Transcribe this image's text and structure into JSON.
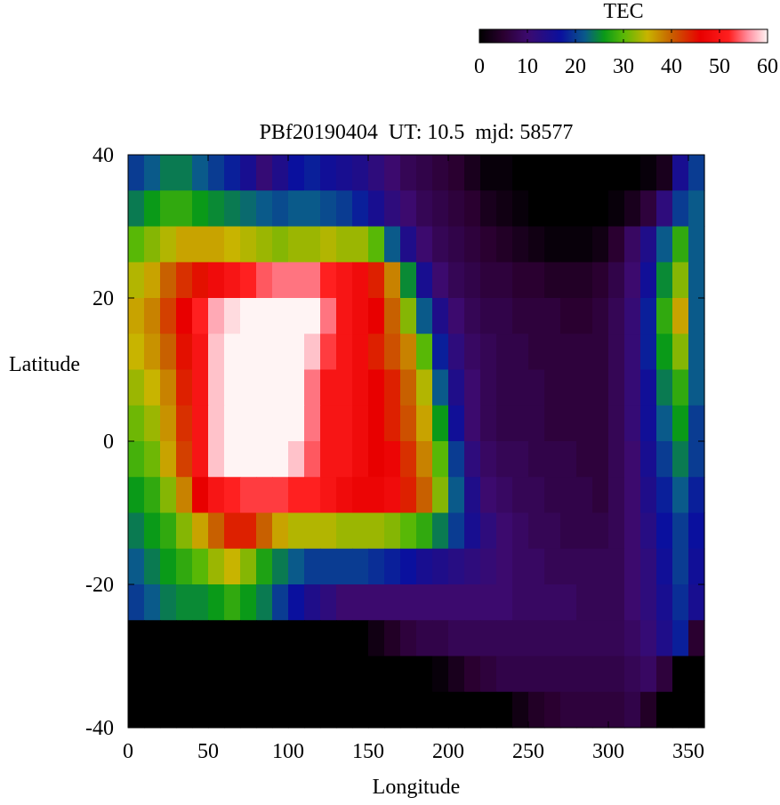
{
  "chart_data": {
    "type": "heatmap",
    "title": "PBf20190404  UT: 10.5  mjd: 58577",
    "xlabel": "Longitude",
    "ylabel": "Latitude",
    "xlim": [
      0,
      360
    ],
    "ylim": [
      -40,
      40
    ],
    "x_ticks": [
      0,
      50,
      100,
      150,
      200,
      250,
      300,
      350
    ],
    "y_ticks": [
      -40,
      -20,
      0,
      20,
      40
    ],
    "grid": false,
    "colorbar": {
      "label": "TEC",
      "range": [
        0,
        60
      ],
      "ticks": [
        0,
        10,
        20,
        30,
        40,
        50,
        60
      ],
      "placement": "top-right",
      "colormap_stops": [
        {
          "value": 0,
          "color": "#000000"
        },
        {
          "value": 5,
          "color": "#2a0030"
        },
        {
          "value": 10,
          "color": "#3c0a6e"
        },
        {
          "value": 17,
          "color": "#0a109e"
        },
        {
          "value": 22,
          "color": "#0a5a8a"
        },
        {
          "value": 26,
          "color": "#0a9a18"
        },
        {
          "value": 30,
          "color": "#58b806"
        },
        {
          "value": 35,
          "color": "#c8b400"
        },
        {
          "value": 40,
          "color": "#c86000"
        },
        {
          "value": 46,
          "color": "#e80000"
        },
        {
          "value": 52,
          "color": "#ff2020"
        },
        {
          "value": 56,
          "color": "#ff90a0"
        },
        {
          "value": 60,
          "color": "#fff4f4"
        }
      ]
    },
    "grid_longitudes": [
      0,
      10,
      20,
      30,
      40,
      50,
      60,
      70,
      80,
      90,
      100,
      110,
      120,
      130,
      140,
      150,
      160,
      170,
      180,
      190,
      200,
      210,
      220,
      230,
      240,
      250,
      260,
      270,
      280,
      290,
      300,
      310,
      320,
      330,
      340,
      350
    ],
    "grid_latitudes": [
      37.5,
      32.5,
      27.5,
      22.5,
      17.5,
      12.5,
      7.5,
      2.5,
      -2.5,
      -7.5,
      -12.5,
      -17.5,
      -22.5,
      -27.5,
      -32.5,
      -37.5
    ],
    "tec_values": [
      [
        20,
        22,
        24,
        24,
        22,
        20,
        18,
        15,
        11,
        14,
        17,
        18,
        16,
        15,
        14,
        12,
        10,
        8,
        7,
        6,
        5,
        3,
        1,
        1,
        0,
        0,
        0,
        0,
        0,
        0,
        0,
        0,
        1,
        3,
        15,
        20
      ],
      [
        24,
        26,
        28,
        28,
        26,
        25,
        24,
        23,
        22,
        21,
        22,
        22,
        21,
        20,
        18,
        15,
        12,
        10,
        8,
        7,
        6,
        5,
        3,
        2,
        1,
        0,
        0,
        0,
        0,
        0,
        1,
        3,
        6,
        12,
        20,
        22
      ],
      [
        30,
        32,
        34,
        36,
        36,
        36,
        35,
        34,
        33,
        32,
        33,
        33,
        34,
        33,
        33,
        30,
        22,
        14,
        10,
        8,
        7,
        6,
        5,
        4,
        3,
        2,
        1,
        1,
        1,
        2,
        5,
        9,
        14,
        22,
        28,
        22
      ],
      [
        34,
        36,
        40,
        43,
        45,
        48,
        50,
        52,
        54,
        55,
        55,
        55,
        52,
        50,
        48,
        44,
        38,
        25,
        15,
        10,
        8,
        7,
        6,
        6,
        5,
        5,
        4,
        4,
        4,
        5,
        7,
        10,
        16,
        25,
        32,
        22
      ],
      [
        36,
        38,
        42,
        46,
        52,
        57,
        59,
        60,
        60,
        60,
        60,
        60,
        55,
        50,
        48,
        46,
        40,
        32,
        22,
        14,
        10,
        8,
        7,
        7,
        6,
        6,
        6,
        5,
        5,
        6,
        8,
        11,
        18,
        28,
        36,
        22
      ],
      [
        35,
        37,
        40,
        45,
        50,
        58,
        60,
        60,
        60,
        60,
        60,
        58,
        53,
        50,
        48,
        44,
        41,
        38,
        30,
        18,
        12,
        9,
        8,
        7,
        7,
        6,
        6,
        6,
        6,
        6,
        8,
        11,
        18,
        26,
        32,
        22
      ],
      [
        33,
        35,
        38,
        44,
        50,
        58,
        60,
        60,
        60,
        60,
        60,
        55,
        50,
        50,
        48,
        46,
        44,
        40,
        34,
        22,
        14,
        10,
        8,
        7,
        7,
        7,
        6,
        6,
        6,
        6,
        8,
        11,
        16,
        24,
        28,
        22
      ],
      [
        31,
        33,
        37,
        43,
        50,
        58,
        60,
        60,
        60,
        60,
        60,
        55,
        50,
        50,
        48,
        46,
        44,
        41,
        36,
        26,
        16,
        10,
        8,
        7,
        7,
        7,
        6,
        6,
        6,
        6,
        8,
        11,
        16,
        22,
        26,
        20
      ],
      [
        29,
        31,
        36,
        42,
        50,
        58,
        60,
        60,
        60,
        60,
        58,
        54,
        50,
        50,
        48,
        46,
        47,
        43,
        38,
        30,
        20,
        12,
        9,
        8,
        8,
        7,
        7,
        7,
        6,
        6,
        8,
        10,
        15,
        20,
        24,
        20
      ],
      [
        26,
        28,
        32,
        38,
        46,
        50,
        52,
        53,
        53,
        53,
        52,
        52,
        50,
        48,
        47,
        47,
        48,
        44,
        40,
        32,
        22,
        14,
        10,
        9,
        8,
        8,
        7,
        7,
        7,
        6,
        8,
        10,
        14,
        18,
        22,
        18
      ],
      [
        24,
        26,
        28,
        32,
        36,
        40,
        44,
        44,
        40,
        36,
        34,
        34,
        34,
        33,
        33,
        33,
        32,
        30,
        28,
        24,
        20,
        15,
        12,
        10,
        9,
        8,
        8,
        7,
        7,
        7,
        8,
        10,
        13,
        17,
        20,
        17
      ],
      [
        22,
        24,
        26,
        28,
        30,
        33,
        35,
        32,
        27,
        24,
        22,
        20,
        20,
        20,
        20,
        19,
        18,
        17,
        15,
        14,
        13,
        12,
        11,
        10,
        9,
        9,
        8,
        8,
        8,
        8,
        8,
        10,
        12,
        16,
        20,
        16
      ],
      [
        20,
        22,
        24,
        25,
        25,
        26,
        28,
        26,
        24,
        20,
        17,
        14,
        12,
        10,
        10,
        10,
        10,
        10,
        10,
        10,
        10,
        10,
        10,
        10,
        9,
        9,
        9,
        9,
        8,
        8,
        8,
        10,
        12,
        15,
        19,
        15
      ],
      [
        0,
        0,
        0,
        0,
        0,
        0,
        0,
        0,
        0,
        0,
        0,
        0,
        0,
        0,
        0,
        2,
        4,
        6,
        7,
        7,
        8,
        8,
        8,
        8,
        8,
        8,
        8,
        8,
        8,
        8,
        8,
        9,
        11,
        14,
        18,
        5
      ],
      [
        0,
        0,
        0,
        0,
        0,
        0,
        0,
        0,
        0,
        0,
        0,
        0,
        0,
        0,
        0,
        0,
        0,
        0,
        0,
        1,
        3,
        5,
        6,
        7,
        7,
        7,
        7,
        7,
        7,
        7,
        7,
        8,
        9,
        6,
        0,
        0
      ],
      [
        0,
        0,
        0,
        0,
        0,
        0,
        0,
        0,
        0,
        0,
        0,
        0,
        0,
        0,
        0,
        0,
        0,
        0,
        0,
        0,
        0,
        0,
        0,
        0,
        2,
        4,
        5,
        6,
        6,
        6,
        6,
        7,
        4,
        0,
        0,
        0
      ]
    ]
  }
}
